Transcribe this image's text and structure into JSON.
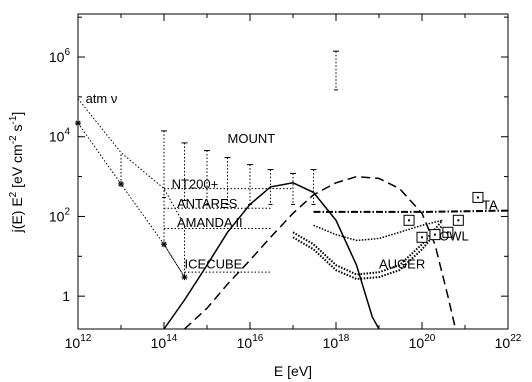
{
  "chart_data": {
    "type": "scatter",
    "x_scale": "log",
    "y_scale": "log",
    "xlabel": "E [eV]",
    "ylabel": "j(E) E^2 [eV cm^-2 s^-1]",
    "xlim": [
      1000000000000.0,
      1e+22
    ],
    "ylim": [
      0.15,
      12000000.0
    ],
    "x_ticks": [
      {
        "value": 1000000000000.0,
        "base": "10",
        "exp": "12"
      },
      {
        "value": 100000000000000.0,
        "base": "10",
        "exp": "14"
      },
      {
        "value": 1e+16,
        "base": "10",
        "exp": "16"
      },
      {
        "value": 1e+18,
        "base": "10",
        "exp": "18"
      },
      {
        "value": 1e+20,
        "base": "10",
        "exp": "20"
      },
      {
        "value": 1e+22,
        "base": "10",
        "exp": "22"
      }
    ],
    "y_ticks": [
      {
        "value": 1,
        "base": "1",
        "exp": ""
      },
      {
        "value": 100,
        "base": "10",
        "exp": "2"
      },
      {
        "value": 10000,
        "base": "10",
        "exp": "4"
      },
      {
        "value": 1000000,
        "base": "10",
        "exp": "6"
      }
    ],
    "annotations": [
      {
        "text": "atm ν",
        "x": 1500000000000.0,
        "y": 70000
      },
      {
        "text": "MOUNT",
        "x": 3000000000000000.0,
        "y": 7000
      },
      {
        "text": "NT200+",
        "x": 150000000000000.0,
        "y": 500
      },
      {
        "text": "ANTARES",
        "x": 200000000000000.0,
        "y": 165
      },
      {
        "text": "AMANDA II",
        "x": 200000000000000.0,
        "y": 55
      },
      {
        "text": "ICECUBE",
        "x": 300000000000000.0,
        "y": 5
      },
      {
        "text": "AUGER",
        "x": 1e+19,
        "y": 5
      },
      {
        "text": "OWL",
        "x": 2.5e+20,
        "y": 25
      },
      {
        "text": "TA",
        "x": 2.5e+21,
        "y": 150
      }
    ],
    "series": [
      {
        "kind": "atm_nu",
        "points": [
          [
            1000000000000.0,
            22000
          ],
          [
            10000000000000.0,
            650
          ],
          [
            100000000000000.0,
            20
          ],
          [
            300000000000000.0,
            3
          ]
        ],
        "upper_bounds": [
          [
            1000000000000.0,
            90000
          ],
          [
            10000000000000.0,
            4000
          ],
          [
            100000000000000.0,
            500
          ],
          [
            300000000000000.0,
            60
          ]
        ]
      },
      {
        "kind": "mount_limits",
        "points": [
          [
            100000000000000.0,
            14000
          ],
          [
            300000000000000.0,
            7000
          ],
          [
            1000000000000000.0,
            4500
          ],
          [
            3000000000000000.0,
            3000
          ],
          [
            1e+16,
            2000
          ],
          [
            3e+16,
            1500
          ],
          [
            1e+17,
            1200
          ],
          [
            3e+17,
            1500
          ],
          [
            1e+18,
            1400000
          ]
        ],
        "lower_bounds": [
          [
            100000000000000.0,
            300
          ],
          [
            300000000000000.0,
            250
          ],
          [
            1000000000000000.0,
            200
          ],
          [
            3000000000000000.0,
            200
          ],
          [
            1e+16,
            200
          ],
          [
            3e+16,
            200
          ],
          [
            1e+17,
            200
          ],
          [
            3e+17,
            200
          ],
          [
            1e+18,
            150000
          ]
        ]
      },
      {
        "kind": "detector_limits",
        "segments": [
          {
            "label": "NT200+",
            "x": [
              100000000000000.0,
              1e+17
            ],
            "y": 500
          },
          {
            "label": "ANTARES",
            "x": [
              100000000000000.0,
              3e+16
            ],
            "y": 160
          },
          {
            "label": "AMANDA II",
            "x": [
              100000000000000.0,
              3e+16
            ],
            "y": 50
          },
          {
            "label": "ICECUBE",
            "x": [
              300000000000000.0,
              3e+16
            ],
            "y": 4
          }
        ]
      },
      {
        "kind": "solid_curve",
        "points": [
          [
            100000000000000.0,
            0.1
          ],
          [
            300000000000000.0,
            0.8
          ],
          [
            1000000000000000.0,
            6
          ],
          [
            3000000000000000.0,
            40
          ],
          [
            1e+16,
            200
          ],
          [
            3e+16,
            550
          ],
          [
            1e+17,
            700
          ],
          [
            3e+17,
            400
          ],
          [
            1e+18,
            80
          ],
          [
            3e+18,
            6
          ],
          [
            7e+18,
            0.3
          ],
          [
            1e+19,
            0.1
          ]
        ]
      },
      {
        "kind": "dashed_curve",
        "points": [
          [
            300000000000000.0,
            0.1
          ],
          [
            1000000000000000.0,
            0.5
          ],
          [
            3000000000000000.0,
            2
          ],
          [
            1e+16,
            8
          ],
          [
            3e+16,
            30
          ],
          [
            1e+17,
            120
          ],
          [
            3e+17,
            350
          ],
          [
            1e+18,
            700
          ],
          [
            3e+18,
            1000
          ],
          [
            1e+19,
            900
          ],
          [
            3e+19,
            500
          ],
          [
            1e+20,
            120
          ],
          [
            2e+20,
            20
          ],
          [
            4e+20,
            1
          ],
          [
            6e+20,
            0.1
          ]
        ]
      },
      {
        "kind": "TA",
        "points": [
          [
            3e+17,
            130
          ],
          [
            1e+18,
            130
          ],
          [
            1e+19,
            130
          ],
          [
            1e+20,
            130
          ],
          [
            1e+21,
            135
          ],
          [
            1e+22,
            140
          ]
        ]
      },
      {
        "kind": "AUGER",
        "band": [
          [
            [
              1e+17,
              40
            ],
            [
              3e+17,
              20
            ],
            [
              1e+18,
              6
            ],
            [
              3e+18,
              3.5
            ],
            [
              1e+19,
              4
            ],
            [
              3e+19,
              6
            ],
            [
              1e+20,
              20
            ],
            [
              3e+20,
              80
            ]
          ],
          [
            [
              1e+17,
              30
            ],
            [
              3e+17,
              15
            ],
            [
              1e+18,
              4.5
            ],
            [
              3e+18,
              2.7
            ],
            [
              1e+19,
              3
            ],
            [
              3e+19,
              4.5
            ],
            [
              1e+20,
              15
            ],
            [
              3e+20,
              60
            ]
          ]
        ]
      },
      {
        "kind": "OWL",
        "points": [
          [
            3e+17,
            60
          ],
          [
            1e+18,
            35
          ],
          [
            3e+18,
            25
          ],
          [
            1e+19,
            28
          ],
          [
            3e+19,
            40
          ],
          [
            1e+20,
            60
          ],
          [
            3e+20,
            80
          ]
        ]
      },
      {
        "kind": "square_markers",
        "points": [
          [
            5e+19,
            80
          ],
          [
            1e+20,
            30
          ],
          [
            2e+20,
            35
          ],
          [
            4e+20,
            40
          ],
          [
            7e+20,
            80
          ],
          [
            2e+21,
            300
          ]
        ]
      }
    ]
  }
}
